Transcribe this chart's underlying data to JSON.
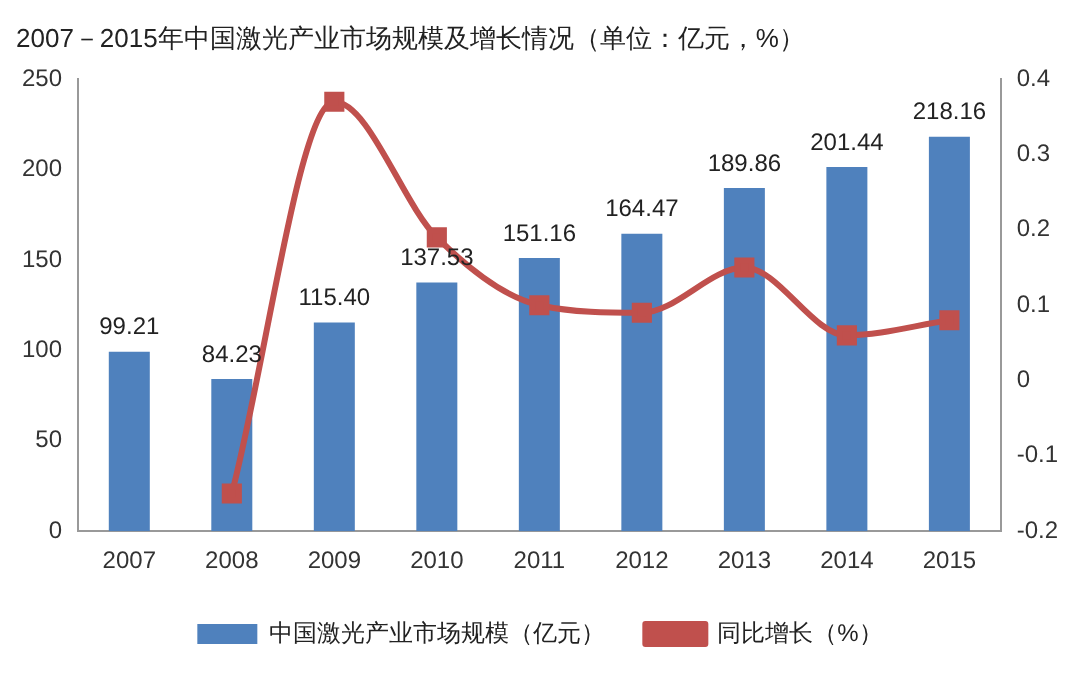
{
  "chart_data": {
    "type": "bar",
    "title": "2007－2015年中国激光产业市场规模及增长情况（单位：亿元，%）",
    "categories": [
      "2007",
      "2008",
      "2009",
      "2010",
      "2011",
      "2012",
      "2013",
      "2014",
      "2015"
    ],
    "series": [
      {
        "name": "中国激光产业市场规模（亿元）",
        "color": "#4f81bd",
        "values": [
          99.21,
          84.23,
          115.4,
          137.53,
          151.16,
          164.47,
          189.86,
          201.44,
          218.16
        ],
        "value_labels": [
          "99.21",
          "84.23",
          "115.40",
          "137.53",
          "151.16",
          "164.47",
          "189.86",
          "201.44",
          "218.16"
        ]
      },
      {
        "name": "同比增长（%）",
        "type": "line",
        "axis": "y2",
        "color": "#c0504d",
        "values": [
          null,
          -0.15,
          0.37,
          0.19,
          0.1,
          0.09,
          0.15,
          0.06,
          0.08
        ]
      }
    ],
    "ylim": [
      0,
      250
    ],
    "yticks": [
      0,
      50,
      100,
      150,
      200,
      250
    ],
    "y2lim": [
      -0.2,
      0.4
    ],
    "y2ticks": [
      -0.2,
      -0.1,
      0,
      0.1,
      0.2,
      0.3,
      0.4
    ],
    "marker": "square",
    "legend": "bottom",
    "grid": false
  }
}
